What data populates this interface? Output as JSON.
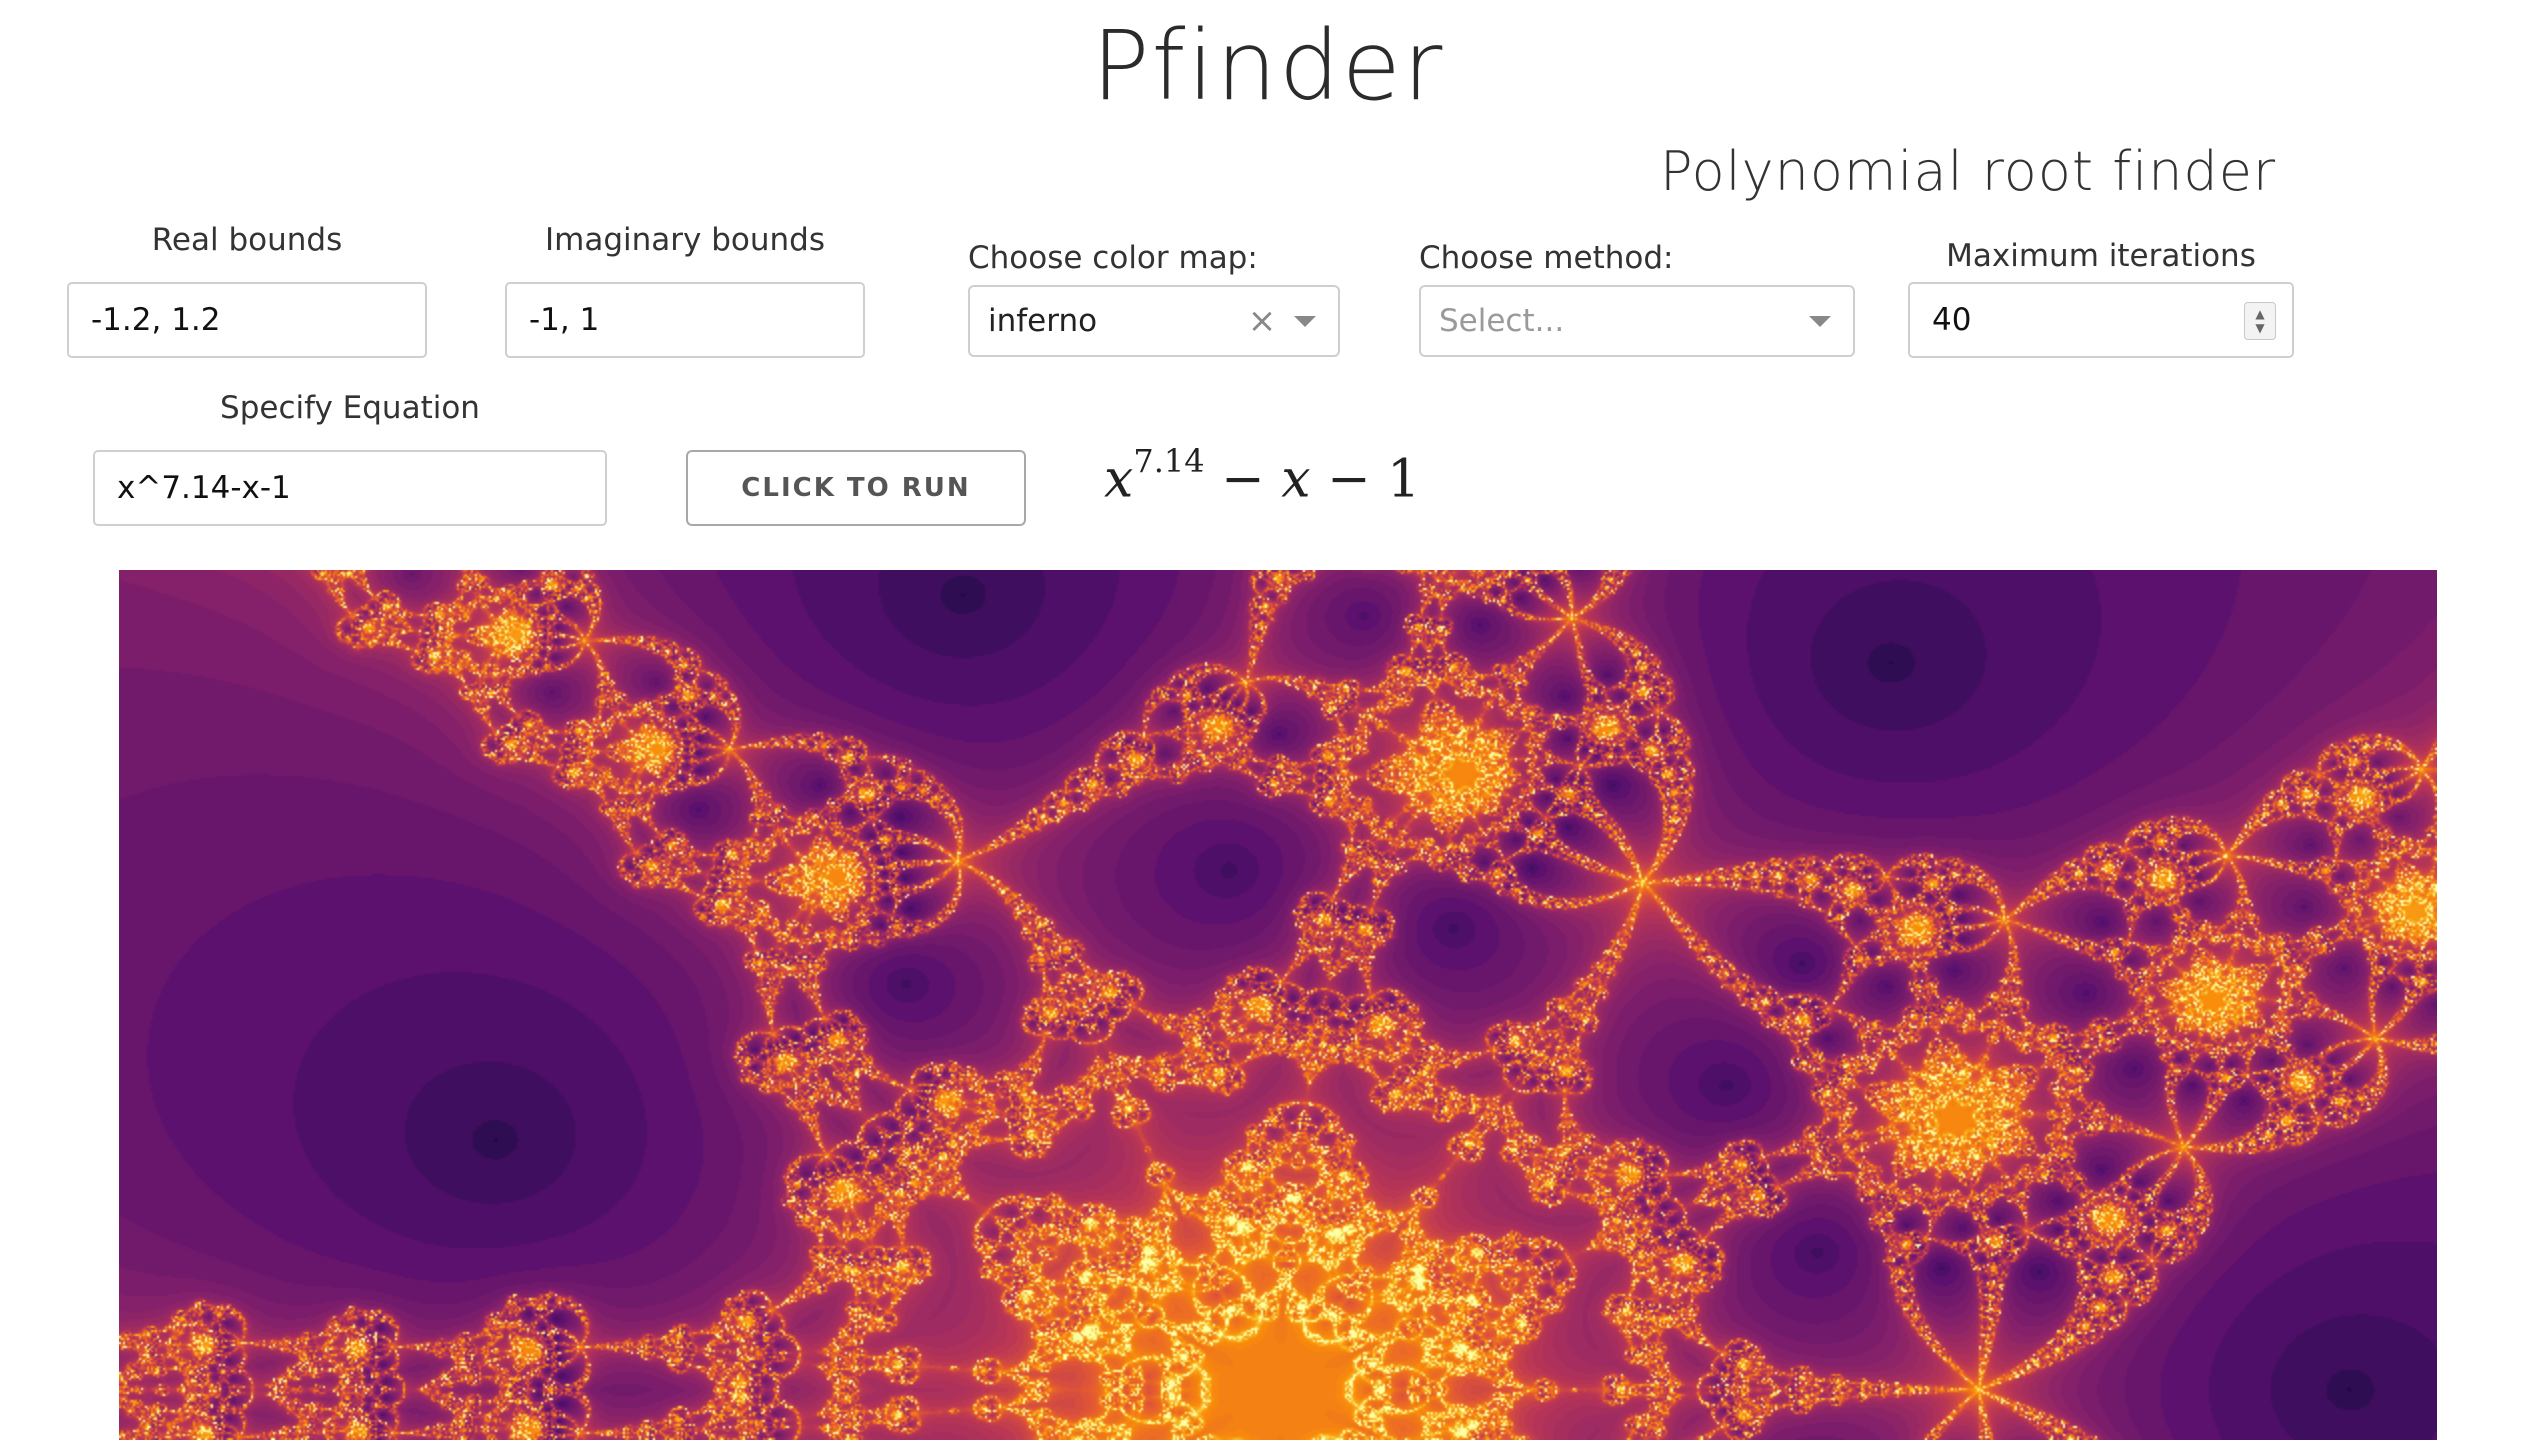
{
  "header": {
    "title": "Pfinder",
    "subtitle": "Polynomial root finder"
  },
  "controls": {
    "real_bounds": {
      "label": "Real bounds",
      "value": "-1.2, 1.2"
    },
    "imaginary_bounds": {
      "label": "Imaginary bounds",
      "value": "-1, 1"
    },
    "color_map": {
      "label": "Choose color map:",
      "value": "inferno",
      "clear_glyph": "×"
    },
    "method": {
      "label": "Choose method:",
      "placeholder": "Select..."
    },
    "max_iterations": {
      "label": "Maximum iterations",
      "value": "40"
    },
    "equation": {
      "label": "Specify Equation",
      "value": "x^7.14-x-1"
    },
    "run_button": {
      "label": "CLICK TO RUN"
    }
  },
  "rendered_equation": {
    "base": "x",
    "exponent": "7.14",
    "rest_ops": "− ",
    "term2": "x",
    "tail": " − 1"
  },
  "plot": {
    "colormap": "inferno",
    "colors": {
      "background_dark": "#0d0829",
      "mid": "#3a0f6b",
      "orange": "#f18d1b",
      "yellow": "#fbd54a"
    }
  }
}
